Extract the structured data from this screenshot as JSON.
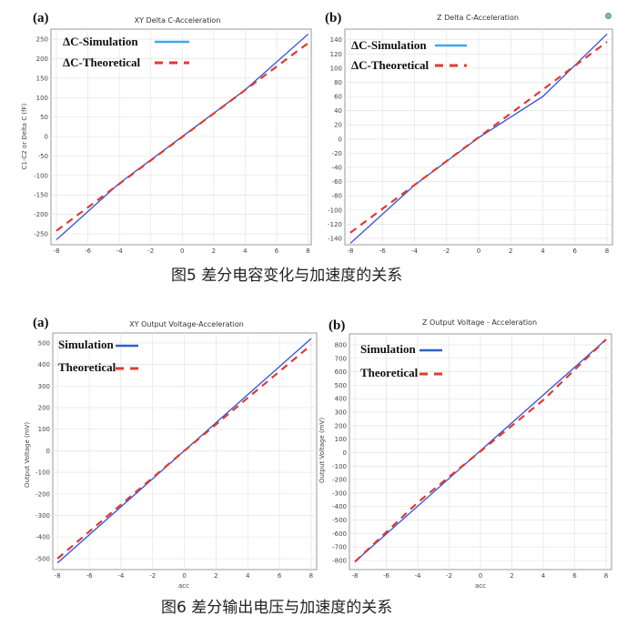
{
  "figure5_caption": "图5 差分电容变化与加速度的关系",
  "figure6_caption": "图6 差分输出电压与加速度的关系",
  "colors": {
    "simulation_legend_top": "#3fa9e8",
    "simulation_line": "#2f4fe0",
    "simulation_legend_bottom": "#2f5fc8",
    "theoretical": "#e03a2f"
  },
  "chart_data": [
    {
      "panel": "(a)",
      "type": "line",
      "title": "XY Delta C-Acceleration",
      "xlabel": "",
      "ylabel": "C1-C2 or Delta C (fF)",
      "xlim": [
        -8.35,
        8.2
      ],
      "ylim": [
        -278,
        276
      ],
      "xticks": [
        -8,
        -6,
        -4,
        -2,
        0,
        2,
        4,
        6,
        8
      ],
      "yticks": [
        -250,
        -200,
        -150,
        -100,
        -50,
        0,
        50,
        100,
        150,
        200,
        250
      ],
      "grid": true,
      "legend_position": "top-left",
      "series": [
        {
          "name": "ΔC-Simulation",
          "style": "solid",
          "x": [
            -8,
            -4,
            0,
            4,
            8
          ],
          "y": [
            -265,
            -120,
            0,
            120,
            263
          ]
        },
        {
          "name": "ΔC-Theoretical",
          "style": "dashed",
          "x": [
            -8,
            8
          ],
          "y": [
            -242,
            240
          ]
        }
      ]
    },
    {
      "panel": "(b)",
      "type": "line",
      "title": "Z Delta C-Acceleration",
      "xlabel": "",
      "ylabel": "",
      "xlim": [
        -8.34,
        8.34
      ],
      "ylim": [
        -149,
        155
      ],
      "xticks": [
        -8,
        -6,
        -4,
        -2,
        0,
        2,
        4,
        6,
        8
      ],
      "yticks": [
        -140,
        -120,
        -100,
        -80,
        -60,
        -40,
        -20,
        0,
        20,
        40,
        60,
        80,
        100,
        120,
        140
      ],
      "grid": true,
      "legend_position": "top-left",
      "series": [
        {
          "name": "ΔC-Simulation",
          "style": "solid",
          "x": [
            -8,
            -4,
            0,
            4,
            8
          ],
          "y": [
            -147,
            -65,
            2,
            60,
            148
          ]
        },
        {
          "name": "ΔC-Theoretical",
          "style": "dashed",
          "x": [
            -8,
            8
          ],
          "y": [
            -132,
            137
          ]
        }
      ]
    },
    {
      "panel": "(a)",
      "type": "line",
      "title": "XY Output Voltage-Acceleration",
      "xlabel": "acc",
      "ylabel": "Output Voltage (mV)",
      "xlim": [
        -8.3,
        8.35
      ],
      "ylim": [
        -551,
        546
      ],
      "xticks": [
        -8,
        -6,
        -4,
        -2,
        0,
        2,
        4,
        6,
        8
      ],
      "yticks": [
        -500,
        -400,
        -300,
        -200,
        -100,
        0,
        100,
        200,
        300,
        400,
        500
      ],
      "grid": true,
      "legend_position": "top-left",
      "series": [
        {
          "name": "Simulation",
          "style": "solid",
          "x": [
            -8,
            8
          ],
          "y": [
            -520,
            520
          ]
        },
        {
          "name": "Theoretical",
          "style": "dashed",
          "x": [
            -8,
            0,
            8
          ],
          "y": [
            -500,
            0,
            490
          ]
        }
      ]
    },
    {
      "panel": "(b)",
      "type": "line",
      "title": "Z Output Voltage - Acceleration",
      "xlabel": "acc",
      "ylabel": "Output Voltage (mV)",
      "xlim": [
        -8.35,
        8.35
      ],
      "ylim": [
        -868,
        881
      ],
      "xticks": [
        -8,
        -6,
        -4,
        -2,
        0,
        2,
        4,
        6,
        8
      ],
      "yticks": [
        -800,
        -700,
        -600,
        -500,
        -400,
        -300,
        -200,
        -100,
        0,
        100,
        200,
        300,
        400,
        500,
        600,
        700,
        800
      ],
      "grid": true,
      "legend_position": "top-left",
      "series": [
        {
          "name": "Simulation",
          "style": "solid",
          "x": [
            -8,
            8
          ],
          "y": [
            -810,
            840
          ]
        },
        {
          "name": "Theoretical",
          "style": "dashed",
          "x": [
            -8,
            -4,
            0,
            4,
            8
          ],
          "y": [
            -810,
            -370,
            10,
            390,
            840
          ]
        }
      ]
    }
  ]
}
